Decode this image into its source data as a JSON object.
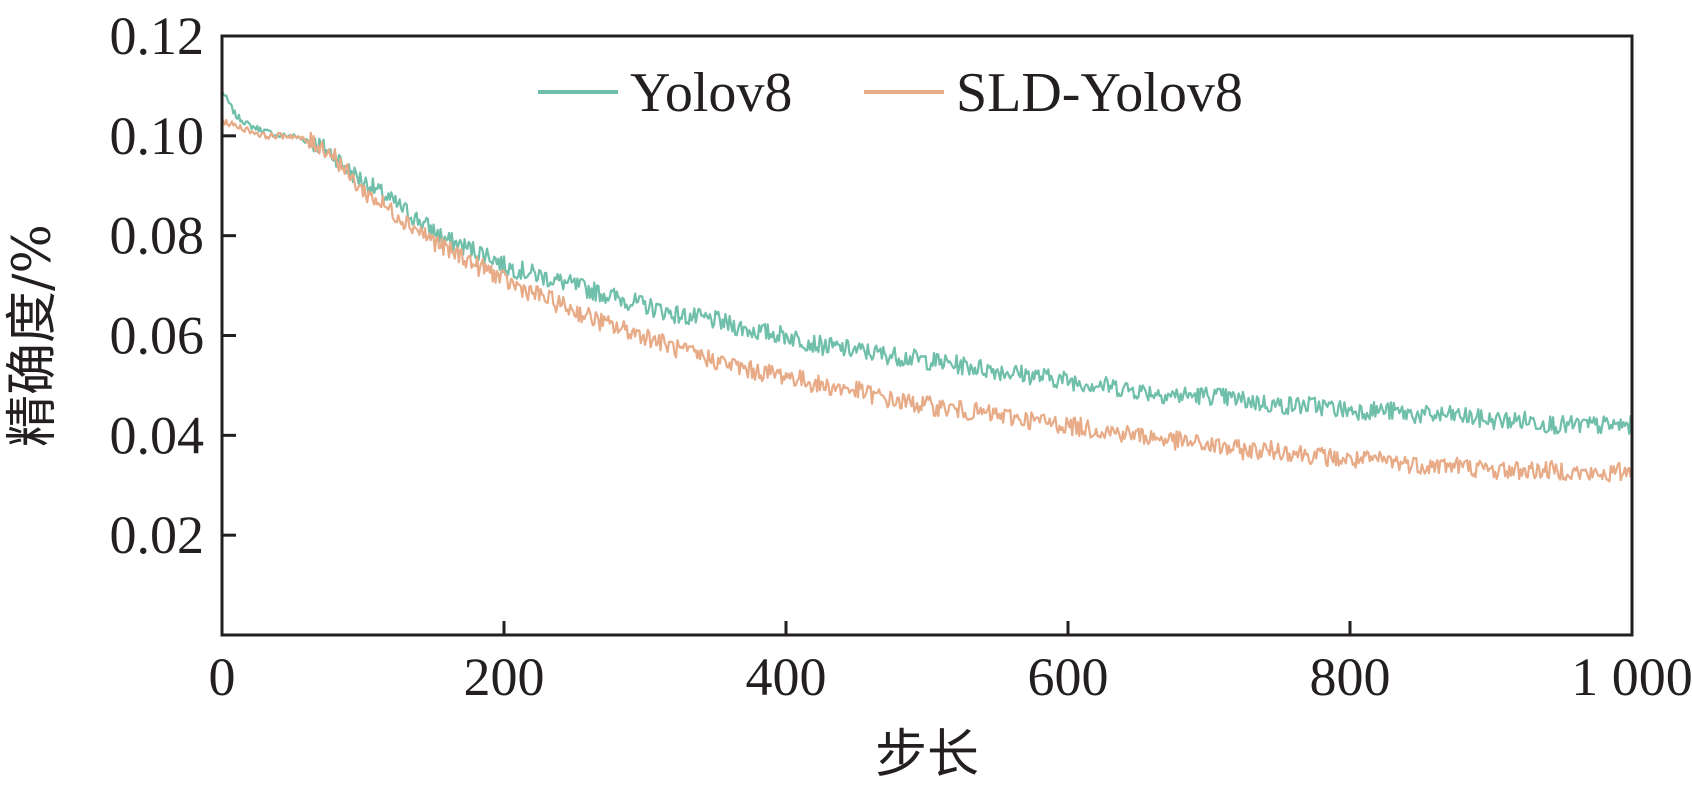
{
  "chart_data": {
    "type": "line",
    "title": "",
    "xlabel": "步长",
    "ylabel": "精确度/%",
    "xlim": [
      0,
      1000
    ],
    "ylim": [
      0,
      0.12
    ],
    "grid": false,
    "legend_position": "top",
    "x_ticks": [
      {
        "value": 0,
        "label": "0"
      },
      {
        "value": 200,
        "label": "200"
      },
      {
        "value": 400,
        "label": "400"
      },
      {
        "value": 600,
        "label": "600"
      },
      {
        "value": 800,
        "label": "800"
      },
      {
        "value": 1000,
        "label": "1 000"
      }
    ],
    "y_ticks": [
      {
        "value": 0.02,
        "label": "0.02"
      },
      {
        "value": 0.04,
        "label": "0.04"
      },
      {
        "value": 0.06,
        "label": "0.06"
      },
      {
        "value": 0.08,
        "label": "0.08"
      },
      {
        "value": 0.1,
        "label": "0.10"
      },
      {
        "value": 0.12,
        "label": "0.12"
      }
    ],
    "x": [
      0,
      10,
      20,
      30,
      40,
      50,
      60,
      70,
      80,
      90,
      100,
      110,
      120,
      130,
      140,
      150,
      160,
      170,
      180,
      190,
      200,
      225,
      250,
      275,
      300,
      325,
      350,
      375,
      400,
      425,
      450,
      475,
      500,
      525,
      550,
      575,
      600,
      625,
      650,
      675,
      700,
      725,
      750,
      775,
      800,
      825,
      850,
      875,
      900,
      925,
      950,
      975,
      1000
    ],
    "series": [
      {
        "name": "Yolov8",
        "color": "#6fbfaa",
        "values": [
          0.109,
          0.104,
          0.102,
          0.101,
          0.1,
          0.1,
          0.099,
          0.098,
          0.096,
          0.093,
          0.091,
          0.089,
          0.087,
          0.085,
          0.083,
          0.081,
          0.079,
          0.078,
          0.077,
          0.076,
          0.074,
          0.072,
          0.07,
          0.068,
          0.066,
          0.064,
          0.063,
          0.061,
          0.06,
          0.058,
          0.057,
          0.056,
          0.055,
          0.054,
          0.053,
          0.052,
          0.051,
          0.05,
          0.049,
          0.048,
          0.048,
          0.047,
          0.046,
          0.046,
          0.045,
          0.045,
          0.044,
          0.044,
          0.043,
          0.043,
          0.042,
          0.042,
          0.042
        ]
      },
      {
        "name": "SLD-Yolov8",
        "color": "#e8ab87",
        "values": [
          0.103,
          0.102,
          0.101,
          0.1,
          0.1,
          0.1,
          0.099,
          0.098,
          0.096,
          0.092,
          0.089,
          0.087,
          0.085,
          0.083,
          0.081,
          0.079,
          0.077,
          0.076,
          0.074,
          0.073,
          0.071,
          0.068,
          0.065,
          0.062,
          0.06,
          0.057,
          0.055,
          0.053,
          0.052,
          0.05,
          0.049,
          0.047,
          0.046,
          0.045,
          0.044,
          0.043,
          0.042,
          0.041,
          0.04,
          0.039,
          0.038,
          0.037,
          0.037,
          0.036,
          0.035,
          0.035,
          0.034,
          0.034,
          0.033,
          0.033,
          0.033,
          0.032,
          0.033
        ]
      }
    ]
  }
}
